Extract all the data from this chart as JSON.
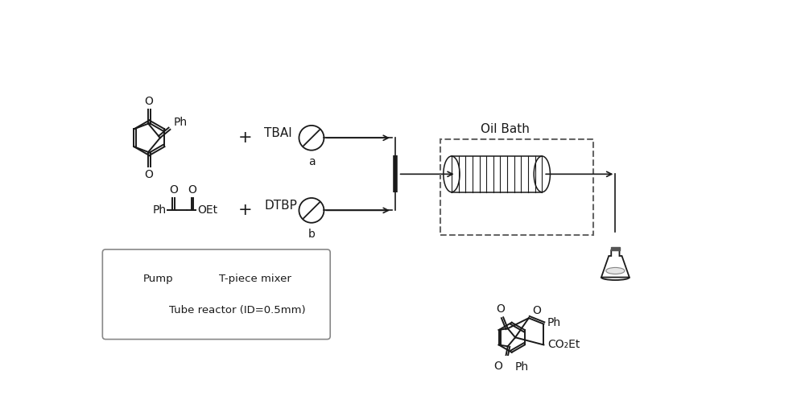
{
  "bg_color": "#ffffff",
  "line_color": "#1a1a1a",
  "text_color": "#1a1a1a",
  "oil_bath_label": "Oil Bath",
  "pump_label": "Pump",
  "t_mixer_label": "T-piece mixer",
  "tube_reactor_label": "Tube reactor (ID=0.5mm)",
  "reagent_a_label": "TBAI",
  "reagent_b_label": "DTBP",
  "pump_a_label": "a",
  "pump_b_label": "b"
}
